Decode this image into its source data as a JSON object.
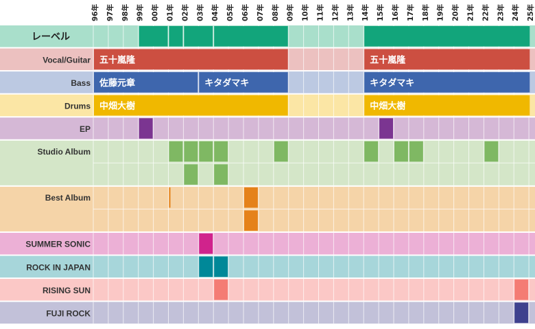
{
  "years": [
    "96年",
    "97年",
    "98年",
    "99年",
    "00年",
    "01年",
    "02年",
    "03年",
    "04年",
    "05年",
    "06年",
    "07年",
    "08年",
    "09年",
    "10年",
    "11年",
    "12年",
    "13年",
    "14年",
    "15年",
    "16年",
    "17年",
    "18年",
    "19年",
    "20年",
    "21年",
    "22年",
    "23年",
    "24年",
    "25年"
  ],
  "rows": [
    {
      "key": "label",
      "label": "レーベル",
      "big": true,
      "color": "#a9dfcb",
      "units": 1,
      "items": [
        {
          "start": 3,
          "end": 5,
          "lane": 0,
          "color": "#12a57b"
        },
        {
          "start": 5,
          "end": 6,
          "lane": 0,
          "color": "#12a57b"
        },
        {
          "start": 6,
          "end": 8,
          "lane": 0,
          "color": "#12a57b"
        },
        {
          "start": 8,
          "end": 13,
          "lane": 0,
          "color": "#12a57b"
        },
        {
          "start": 18,
          "end": 29.1,
          "lane": 0,
          "color": "#12a57b"
        }
      ]
    },
    {
      "key": "vocal",
      "label": "Vocal/Guitar",
      "color": "#ecc1c0",
      "units": 1,
      "items": [
        {
          "start": 0,
          "end": 13,
          "lane": 0,
          "color": "#cc4f41",
          "text": "五十嵐隆"
        },
        {
          "start": 18,
          "end": 29.1,
          "lane": 0,
          "color": "#cc4f41",
          "text": "五十嵐隆"
        }
      ]
    },
    {
      "key": "bass",
      "label": "Bass",
      "color": "#bcc9e2",
      "units": 1,
      "items": [
        {
          "start": 0,
          "end": 7,
          "lane": 0,
          "color": "#3e66ad",
          "text": "佐藤元章"
        },
        {
          "start": 7,
          "end": 13,
          "lane": 0,
          "color": "#3e66ad",
          "text": "キタダマキ"
        },
        {
          "start": 18,
          "end": 29.1,
          "lane": 0,
          "color": "#3e66ad",
          "text": "キタダマキ"
        }
      ]
    },
    {
      "key": "drums",
      "label": "Drums",
      "color": "#fbe6a5",
      "units": 1,
      "items": [
        {
          "start": 0,
          "end": 13,
          "lane": 0,
          "color": "#f0b800",
          "text": "中畑大樹"
        },
        {
          "start": 18,
          "end": 29.1,
          "lane": 0,
          "color": "#f0b800",
          "text": "中畑大樹"
        }
      ]
    },
    {
      "key": "ep",
      "label": "EP",
      "color": "#d5b8d6",
      "units": 1,
      "items": [
        {
          "start": 3,
          "end": 4,
          "lane": 0,
          "color": "#7b3591"
        },
        {
          "start": 19,
          "end": 20,
          "lane": 0,
          "color": "#7b3591"
        }
      ]
    },
    {
      "key": "studio",
      "label": "Studio Album",
      "color": "#d4e6c8",
      "units": 2,
      "items": [
        {
          "start": 5,
          "end": 6,
          "lane": 0,
          "color": "#7fb863"
        },
        {
          "start": 6,
          "end": 7,
          "lane": 0,
          "color": "#7fb863"
        },
        {
          "start": 7,
          "end": 8,
          "lane": 0,
          "color": "#7fb863"
        },
        {
          "start": 8,
          "end": 9,
          "lane": 0,
          "color": "#7fb863"
        },
        {
          "start": 12,
          "end": 13,
          "lane": 0,
          "color": "#7fb863"
        },
        {
          "start": 18,
          "end": 19,
          "lane": 0,
          "color": "#7fb863"
        },
        {
          "start": 20,
          "end": 21,
          "lane": 0,
          "color": "#7fb863"
        },
        {
          "start": 21,
          "end": 22,
          "lane": 0,
          "color": "#7fb863"
        },
        {
          "start": 26,
          "end": 27,
          "lane": 0,
          "color": "#7fb863"
        },
        {
          "start": 6,
          "end": 7,
          "lane": 1,
          "color": "#7fb863"
        },
        {
          "start": 8,
          "end": 9,
          "lane": 1,
          "color": "#7fb863"
        }
      ]
    },
    {
      "key": "best",
      "label": "Best Album",
      "color": "#f5d4a8",
      "units": 2,
      "items": [
        {
          "start": 5,
          "end": 5.18,
          "lane": 0,
          "color": "#e5821a"
        },
        {
          "start": 10,
          "end": 11,
          "lane": 0,
          "color": "#e5821a"
        },
        {
          "start": 10,
          "end": 11,
          "lane": 1,
          "color": "#e5821a"
        }
      ]
    },
    {
      "key": "summer",
      "label": "SUMMER SONIC",
      "color": "#ecb0d6",
      "units": 1,
      "items": [
        {
          "start": 7,
          "end": 8,
          "lane": 0,
          "color": "#d0238c"
        }
      ]
    },
    {
      "key": "rij",
      "label": "ROCK IN JAPAN",
      "color": "#a7d6da",
      "units": 1,
      "items": [
        {
          "start": 7,
          "end": 8,
          "lane": 0,
          "color": "#008898"
        },
        {
          "start": 8,
          "end": 9,
          "lane": 0,
          "color": "#008898"
        }
      ]
    },
    {
      "key": "rising",
      "label": "RISING SUN",
      "color": "#fbc8c6",
      "units": 1,
      "items": [
        {
          "start": 8,
          "end": 9,
          "lane": 0,
          "color": "#f47c74"
        },
        {
          "start": 28,
          "end": 29,
          "lane": 0,
          "color": "#f47c74"
        }
      ]
    },
    {
      "key": "fuji",
      "label": "FUJI ROCK",
      "color": "#c2c1d9",
      "units": 1,
      "items": [
        {
          "start": 28,
          "end": 29,
          "lane": 0,
          "color": "#3e418e"
        }
      ]
    }
  ]
}
